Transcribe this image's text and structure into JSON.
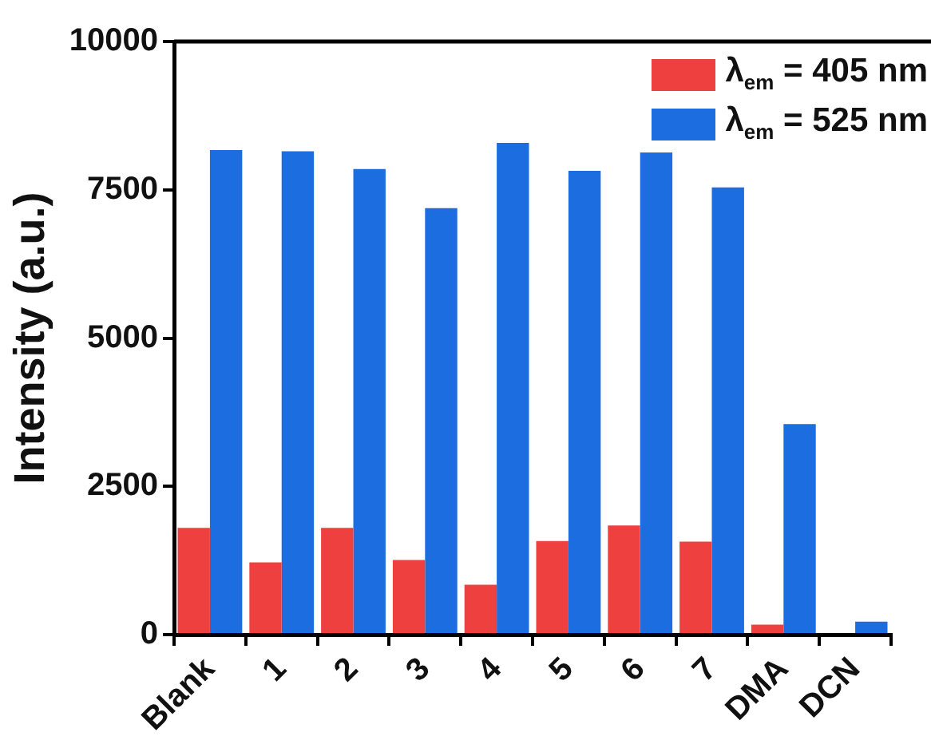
{
  "chart_data": {
    "type": "bar",
    "ylabel": "Intensity (a.u.)",
    "categories": [
      "Blank",
      "1",
      "2",
      "3",
      "4",
      "5",
      "6",
      "7",
      "DMA",
      "DCN"
    ],
    "series": [
      {
        "name": "λ$_{em}$ = 405 nm",
        "color": "#ef4040",
        "values": [
          1800,
          1220,
          1800,
          1260,
          840,
          1580,
          1840,
          1570,
          170,
          0
        ]
      },
      {
        "name": "λ$_{em}$ = 525 nm",
        "color": "#1c6ddf",
        "values": [
          8170,
          8150,
          7850,
          7190,
          8290,
          7820,
          8130,
          7540,
          3550,
          220
        ]
      }
    ],
    "ylim": [
      0,
      10000
    ],
    "yticks": [
      0,
      2500,
      5000,
      7500,
      10000
    ],
    "grid": false,
    "legend": "top right"
  }
}
